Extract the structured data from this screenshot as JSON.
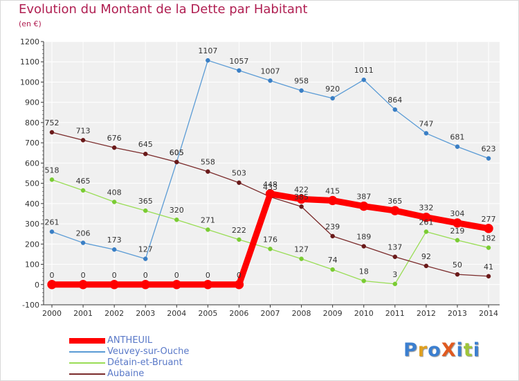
{
  "title": "Evolution du Montant de la Dette par Habitant",
  "subtitle": "(en €)",
  "logo": {
    "text": "ProXiti",
    "letters": [
      "P",
      "r",
      "o",
      "X",
      "i",
      "t",
      "i"
    ],
    "colors": [
      "#3b7fd0",
      "#e0a020",
      "#3b7fd0",
      "#e05a20",
      "#3b7fd0",
      "#9fc53a",
      "#3b7fd0"
    ]
  },
  "colors": {
    "ANTHEUIL": "#ff0000",
    "Veuvey-sur-Ouche": "#5a9bd5",
    "Détain-et-Bruant": "#99dd55",
    "Aubaine": "#7a2a2a"
  },
  "chart_data": {
    "type": "line",
    "title": "Evolution du Montant de la Dette par Habitant",
    "ylabel": "(en €)",
    "xlabel": "",
    "x": [
      "2000",
      "2001",
      "2002",
      "2003",
      "2004",
      "2005",
      "2006",
      "2007",
      "2008",
      "2009",
      "2010",
      "2011",
      "2012",
      "2013",
      "2014"
    ],
    "ylim": [
      -100,
      1200
    ],
    "yticks": [
      "-100",
      "0",
      "100",
      "200",
      "300",
      "400",
      "500",
      "600",
      "700",
      "800",
      "900",
      "1000",
      "1100",
      "1200"
    ],
    "grid": true,
    "legend_position": "bottom-left",
    "series": [
      {
        "name": "ANTHEUIL",
        "values": [
          0,
          0,
          0,
          0,
          0,
          0,
          0,
          448,
          422,
          415,
          387,
          365,
          332,
          304,
          277
        ],
        "labels": [
          "0",
          "0",
          "0",
          "0",
          "0",
          "0",
          "0",
          "448",
          "422",
          "415",
          "387",
          "365",
          "332",
          "304",
          "277"
        ]
      },
      {
        "name": "Veuvey-sur-Ouche",
        "values": [
          261,
          206,
          173,
          127,
          605,
          1107,
          1057,
          1007,
          958,
          920,
          1011,
          864,
          747,
          681,
          623
        ],
        "labels": [
          "261",
          "206",
          "173",
          "127",
          "605",
          "1107",
          "1057",
          "1007",
          "958",
          "920",
          "1011",
          "864",
          "747",
          "681",
          "623"
        ]
      },
      {
        "name": "Détain-et-Bruant",
        "values": [
          518,
          465,
          408,
          365,
          320,
          271,
          222,
          176,
          127,
          74,
          18,
          3,
          261,
          219,
          182
        ],
        "labels": [
          "518",
          "465",
          "408",
          "365",
          "320",
          "271",
          "222",
          "176",
          "127",
          "74",
          "18",
          "3",
          "261",
          "219",
          "182"
        ]
      },
      {
        "name": "Aubaine",
        "values": [
          752,
          713,
          676,
          645,
          605,
          558,
          503,
          433,
          385,
          239,
          189,
          137,
          92,
          50,
          41
        ],
        "labels": [
          "752",
          "713",
          "676",
          "645",
          "605",
          "558",
          "503",
          "433",
          "385",
          "239",
          "189",
          "137",
          "92",
          "50",
          "41"
        ]
      }
    ]
  }
}
